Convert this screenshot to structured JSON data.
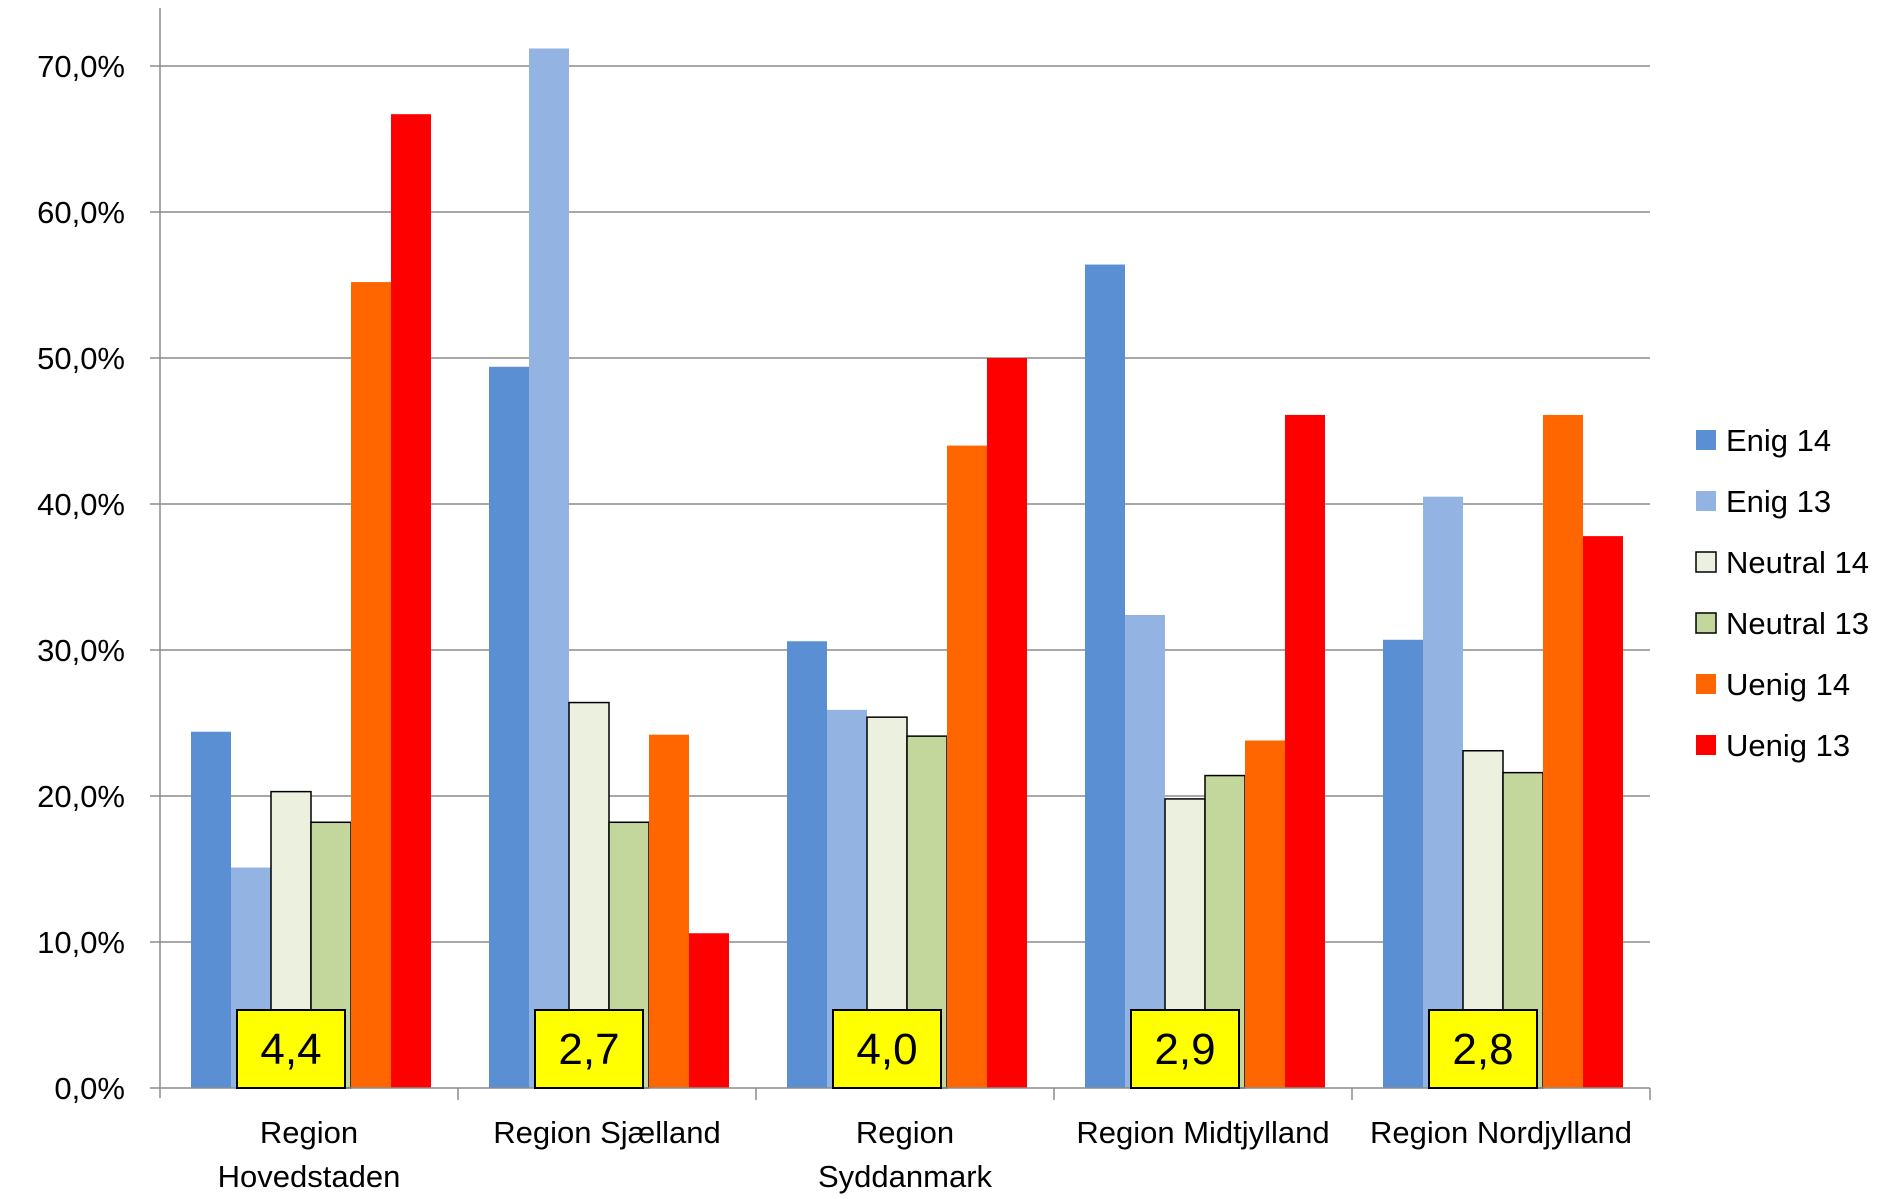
{
  "chart_data": {
    "type": "bar",
    "title": "",
    "xlabel": "",
    "ylabel": "",
    "ylim": [
      0,
      70
    ],
    "yticks": [
      0,
      10,
      20,
      30,
      40,
      50,
      60,
      70
    ],
    "ytick_labels": [
      "0,0%",
      "10,0%",
      "20,0%",
      "30,0%",
      "40,0%",
      "50,0%",
      "60,0%",
      "70,0%"
    ],
    "grid": true,
    "legend_position": "right",
    "categories": [
      [
        "Region",
        "Hovedstaden"
      ],
      [
        "Region Sjælland"
      ],
      [
        "Region",
        "Syddanmark"
      ],
      [
        "Region Midtjylland"
      ],
      [
        "Region Nordjylland"
      ]
    ],
    "series": [
      {
        "name": "Enig 14",
        "color": "#5B8FD4",
        "values": [
          24.4,
          49.4,
          30.6,
          56.4,
          30.7
        ]
      },
      {
        "name": "Enig 13",
        "color": "#93B4E3",
        "values": [
          15.1,
          71.2,
          25.9,
          32.4,
          40.5
        ]
      },
      {
        "name": "Neutral 14",
        "color": "#EBF0DF",
        "values": [
          20.3,
          26.4,
          25.4,
          19.8,
          23.1
        ]
      },
      {
        "name": "Neutral 13",
        "color": "#C3D69B",
        "values": [
          18.2,
          18.2,
          24.1,
          21.4,
          21.6
        ]
      },
      {
        "name": "Uenig 14",
        "color": "#FF6600",
        "values": [
          55.2,
          24.2,
          44.0,
          23.8,
          46.1
        ]
      },
      {
        "name": "Uenig 13",
        "color": "#FF0000",
        "values": [
          66.7,
          10.6,
          50.0,
          46.1,
          37.8
        ]
      }
    ],
    "annotations": [
      "4,4",
      "2,7",
      "4,0",
      "2,9",
      "2,8"
    ],
    "annotation_color": "#FFFF00"
  }
}
